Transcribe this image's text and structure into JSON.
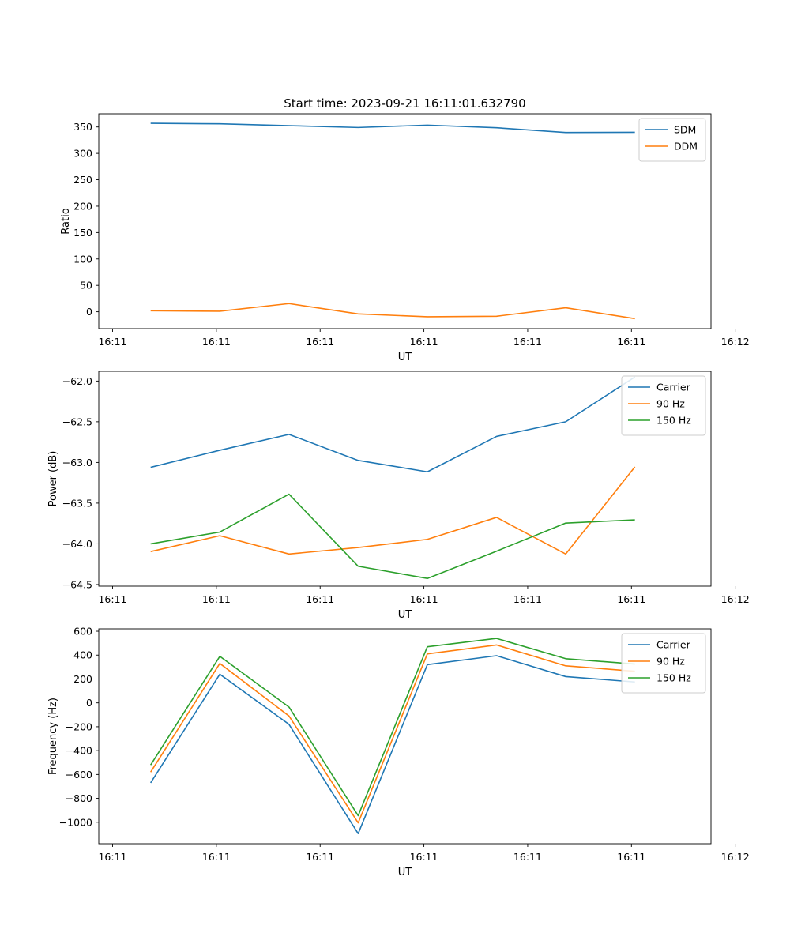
{
  "figure": {
    "title": "Start time: 2023-09-21 16:11:01.632790"
  },
  "chart_data": [
    {
      "type": "line",
      "title": "Start time: 2023-09-21 16:11:01.632790",
      "xlabel": "UT",
      "ylabel": "Ratio",
      "x": [
        1,
        2,
        3,
        4,
        5,
        6,
        7,
        8
      ],
      "xlim": [
        0.25,
        9.1
      ],
      "xticks": [
        0.45,
        1.95,
        3.45,
        4.95,
        6.45,
        7.95,
        9.45
      ],
      "xtick_labels": [
        "16:11",
        "16:11",
        "16:11",
        "16:11",
        "16:11",
        "16:11",
        "16:12"
      ],
      "ylim": [
        -32,
        375
      ],
      "yticks": [
        0,
        50,
        100,
        150,
        200,
        250,
        300,
        350
      ],
      "ytick_labels": [
        "0",
        "50",
        "100",
        "150",
        "200",
        "250",
        "300",
        "350"
      ],
      "legend_position": "top-right",
      "series": [
        {
          "name": "SDM",
          "color": "#1f77b4",
          "values": [
            357,
            356,
            352.5,
            349,
            353.5,
            348.5,
            339.5,
            340
          ]
        },
        {
          "name": "DDM",
          "color": "#ff7f0e",
          "values": [
            2,
            1,
            15.5,
            -4,
            -9.5,
            -8.5,
            7.5,
            -13
          ]
        }
      ]
    },
    {
      "type": "line",
      "title": "",
      "xlabel": "UT",
      "ylabel": "Power (dB)",
      "x": [
        1,
        2,
        3,
        4,
        5,
        6,
        7,
        8
      ],
      "xlim": [
        0.25,
        9.1
      ],
      "xticks": [
        0.45,
        1.95,
        3.45,
        4.95,
        6.45,
        7.95,
        9.45
      ],
      "xtick_labels": [
        "16:11",
        "16:11",
        "16:11",
        "16:11",
        "16:11",
        "16:11",
        "16:12"
      ],
      "ylim": [
        -64.52,
        -61.88
      ],
      "yticks": [
        -64.5,
        -64.0,
        -63.5,
        -63.0,
        -62.5,
        -62.0
      ],
      "ytick_labels": [
        "−64.5",
        "−64.0",
        "−63.5",
        "−63.0",
        "−62.5",
        "−62.0"
      ],
      "legend_position": "top-right",
      "series": [
        {
          "name": "Carrier",
          "color": "#1f77b4",
          "values": [
            -63.06,
            -62.85,
            -62.655,
            -62.975,
            -63.115,
            -62.68,
            -62.5,
            -61.95
          ]
        },
        {
          "name": "90 Hz",
          "color": "#ff7f0e",
          "values": [
            -64.095,
            -63.9,
            -64.125,
            -64.045,
            -63.945,
            -63.675,
            -64.125,
            -63.055
          ]
        },
        {
          "name": "150 Hz",
          "color": "#2ca02c",
          "values": [
            -64.0,
            -63.855,
            -63.39,
            -64.275,
            -64.425,
            -64.09,
            -63.745,
            -63.705
          ]
        }
      ]
    },
    {
      "type": "line",
      "title": "",
      "xlabel": "UT",
      "ylabel": "Frequency (Hz)",
      "x": [
        1,
        2,
        3,
        4,
        5,
        6,
        7,
        8
      ],
      "xlim": [
        0.25,
        9.1
      ],
      "xticks": [
        0.45,
        1.95,
        3.45,
        4.95,
        6.45,
        7.95,
        9.45
      ],
      "xtick_labels": [
        "16:11",
        "16:11",
        "16:11",
        "16:11",
        "16:11",
        "16:11",
        "16:12"
      ],
      "ylim": [
        -1180,
        620
      ],
      "yticks": [
        -1000,
        -800,
        -600,
        -400,
        -200,
        0,
        200,
        400,
        600
      ],
      "ytick_labels": [
        "−1000",
        "−800",
        "−600",
        "−400",
        "−200",
        "0",
        "200",
        "400",
        "600"
      ],
      "legend_position": "top-right",
      "series": [
        {
          "name": "Carrier",
          "color": "#1f77b4",
          "values": [
            -670,
            240,
            -180,
            -1095,
            320,
            395,
            220,
            175
          ]
        },
        {
          "name": "90 Hz",
          "color": "#ff7f0e",
          "values": [
            -580,
            330,
            -110,
            -1005,
            410,
            485,
            310,
            265
          ]
        },
        {
          "name": "150 Hz",
          "color": "#2ca02c",
          "values": [
            -520,
            390,
            -35,
            -945,
            470,
            540,
            370,
            325
          ]
        }
      ]
    }
  ]
}
